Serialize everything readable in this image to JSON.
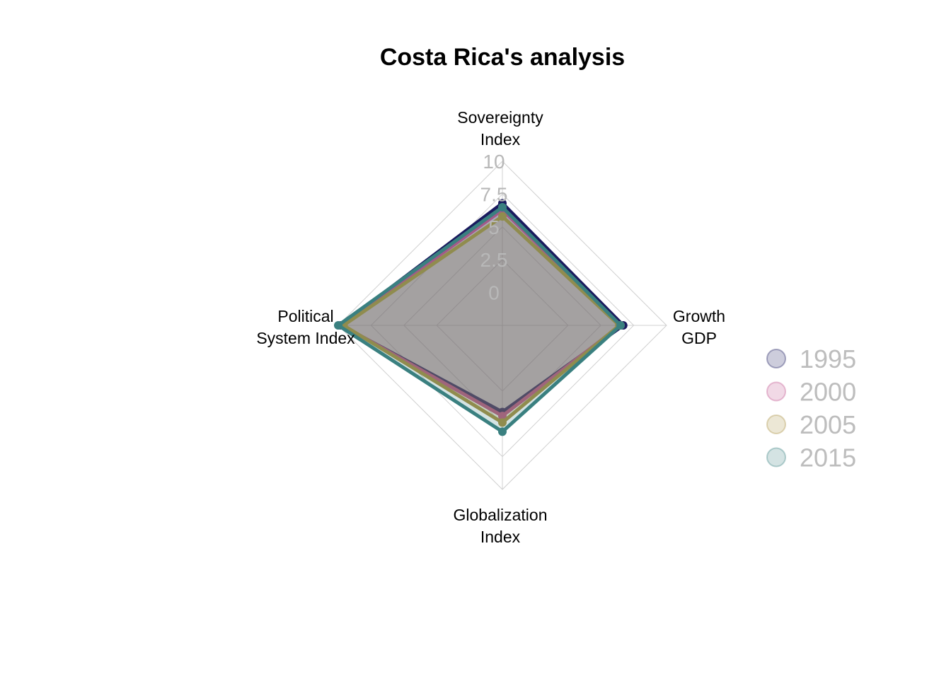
{
  "chart_data": {
    "type": "radar",
    "title": "Costa Rica's analysis",
    "axes": [
      [
        "Sovereignty",
        "Index"
      ],
      [
        "Growth",
        "GDP"
      ],
      [
        "Globalization",
        "Index"
      ],
      [
        "Political",
        "System Index"
      ]
    ],
    "range": [
      0,
      10
    ],
    "ticks": [
      "0",
      "2.5",
      "5",
      "7.5",
      "10"
    ],
    "grid_levels": [
      2.5,
      5,
      7.5,
      10
    ],
    "grid": true,
    "legend_position": "right",
    "series": [
      {
        "name": "1995",
        "color": "#1a1a5e",
        "values": [
          6.8,
          6.7,
          4.1,
          9.8
        ]
      },
      {
        "name": "2000",
        "color": "#c0508c",
        "values": [
          6.3,
          6.5,
          4.4,
          9.7
        ]
      },
      {
        "name": "2005",
        "color": "#a89040",
        "values": [
          5.8,
          6.4,
          4.9,
          9.6
        ]
      },
      {
        "name": "2015",
        "color": "#3a8080",
        "values": [
          6.5,
          6.5,
          5.6,
          10.0
        ]
      }
    ]
  }
}
